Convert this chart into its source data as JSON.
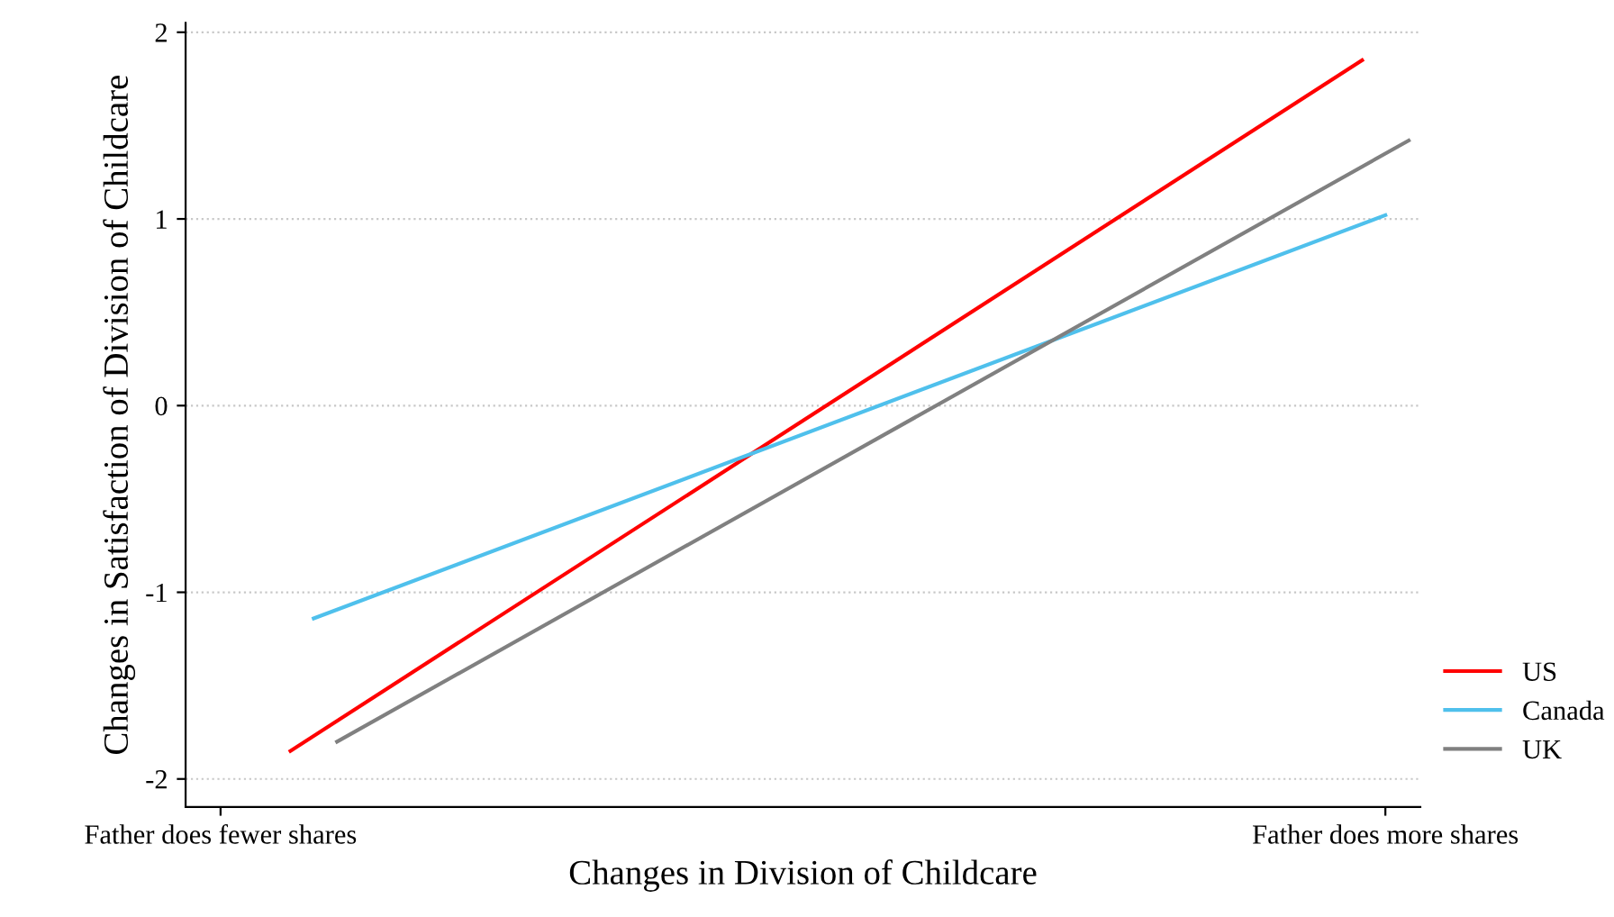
{
  "chart_data": {
    "type": "line",
    "xlabel": "Changes in Division of Childcare",
    "ylabel": "Changes in Satisfaction of Division of Childcare",
    "categories": [
      "Father does fewer shares",
      null,
      null,
      null,
      null,
      null,
      null,
      null,
      null,
      null,
      null,
      null,
      null,
      null,
      null,
      null,
      null,
      null,
      null,
      null,
      null,
      null,
      null,
      null,
      null,
      null,
      null,
      null,
      null,
      null,
      null,
      null,
      null,
      null,
      null,
      null,
      null,
      null,
      null,
      null,
      null,
      null,
      null,
      null,
      null,
      null,
      null,
      null,
      null,
      null,
      "Father does more shares",
      null
    ],
    "ylim": [
      -2.15,
      2.05
    ],
    "yticks": [
      -2,
      -1,
      0,
      1,
      2
    ],
    "grid": "y",
    "legend": "right",
    "line_style": "solid",
    "marker": "none",
    "series": [
      {
        "name": "US",
        "color": "#ff0000",
        "values": [
          null,
          null,
          null,
          -1.85,
          null,
          null,
          null,
          null,
          null,
          null,
          null,
          null,
          null,
          null,
          null,
          null,
          null,
          null,
          null,
          null,
          null,
          null,
          null,
          null,
          null,
          null,
          null,
          null,
          null,
          null,
          null,
          null,
          null,
          null,
          null,
          null,
          null,
          null,
          null,
          null,
          null,
          null,
          null,
          null,
          null,
          null,
          null,
          null,
          null,
          1.85,
          null,
          null
        ]
      },
      {
        "name": "Canada",
        "color": "#4fc0ec",
        "values": [
          null,
          null,
          null,
          null,
          -1.14,
          null,
          null,
          null,
          null,
          null,
          null,
          null,
          null,
          null,
          null,
          null,
          null,
          null,
          null,
          null,
          null,
          null,
          null,
          null,
          null,
          null,
          null,
          null,
          null,
          null,
          null,
          null,
          null,
          null,
          null,
          null,
          null,
          null,
          null,
          null,
          null,
          null,
          null,
          null,
          null,
          null,
          null,
          null,
          null,
          null,
          1.02,
          null
        ]
      },
      {
        "name": "UK",
        "color": "#808080",
        "values": [
          null,
          null,
          null,
          null,
          null,
          -1.8,
          null,
          null,
          null,
          null,
          null,
          null,
          null,
          null,
          null,
          null,
          null,
          null,
          null,
          null,
          null,
          null,
          null,
          null,
          null,
          null,
          null,
          null,
          null,
          null,
          null,
          null,
          null,
          null,
          null,
          null,
          null,
          null,
          null,
          null,
          null,
          null,
          null,
          null,
          null,
          null,
          null,
          null,
          null,
          null,
          null,
          1.42
        ]
      }
    ]
  }
}
